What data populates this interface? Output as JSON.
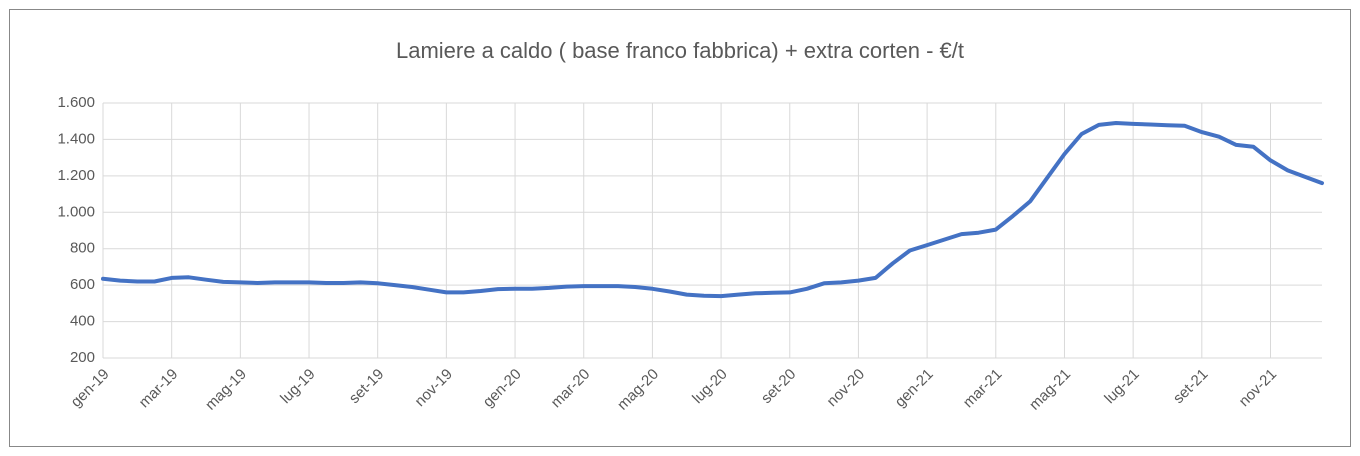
{
  "chart_data": {
    "type": "line",
    "title": "Lamiere a caldo ( base franco fabbrica) + extra corten - €/t",
    "categories": [
      "gen-19",
      null,
      null,
      null,
      "mar-19",
      null,
      null,
      null,
      "mag-19",
      null,
      null,
      null,
      "lug-19",
      null,
      null,
      null,
      "set-19",
      null,
      null,
      null,
      "nov-19",
      null,
      null,
      null,
      "gen-20",
      null,
      null,
      null,
      "mar-20",
      null,
      null,
      null,
      "mag-20",
      null,
      null,
      null,
      "lug-20",
      null,
      null,
      null,
      "set-20",
      null,
      null,
      null,
      "nov-20",
      null,
      null,
      null,
      "gen-21",
      null,
      null,
      null,
      "mar-21",
      null,
      null,
      null,
      "mag-21",
      null,
      null,
      null,
      "lug-21",
      null,
      null,
      null,
      "set-21",
      null,
      null,
      null,
      "nov-21",
      null,
      null,
      null
    ],
    "series": [
      {
        "name": "Lamiere a caldo",
        "color": "#4472c4",
        "values": [
          635,
          625,
          620,
          620,
          640,
          643,
          630,
          618,
          615,
          612,
          615,
          615,
          615,
          612,
          612,
          615,
          610,
          600,
          590,
          575,
          560,
          560,
          568,
          578,
          580,
          580,
          585,
          592,
          595,
          595,
          595,
          590,
          580,
          565,
          548,
          542,
          540,
          548,
          555,
          558,
          560,
          580,
          610,
          615,
          625,
          640,
          720,
          790,
          820,
          850,
          880,
          888,
          905,
          980,
          1060,
          1190,
          1320,
          1430,
          1480,
          1490,
          1485,
          1482,
          1478,
          1475,
          1440,
          1415,
          1370,
          1360,
          1285,
          1230,
          1195,
          1160
        ]
      }
    ],
    "ylim": [
      200,
      1600
    ],
    "yticks": [
      200,
      400,
      600,
      800,
      {
        "value": 1000,
        "label": "1.000"
      },
      {
        "value": 1200,
        "label": "1.200"
      },
      {
        "value": 1400,
        "label": "1.400"
      },
      {
        "value": 1600,
        "label": "1.600"
      }
    ],
    "grid": true
  }
}
